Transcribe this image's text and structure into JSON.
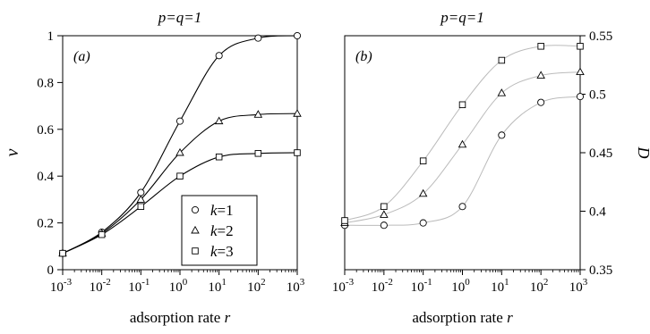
{
  "chart_data": [
    {
      "type": "line",
      "title": "p=q=1",
      "panel_label": "(a)",
      "xlabel": "adsorption rate r",
      "ylabel": "ν",
      "xscale": "log",
      "xlim": [
        0.001,
        1000
      ],
      "ylim": [
        0,
        1
      ],
      "x_ticks": [
        {
          "base": "10",
          "exp": "-3"
        },
        {
          "base": "10",
          "exp": "-2"
        },
        {
          "base": "10",
          "exp": "-1"
        },
        {
          "base": "10",
          "exp": "0"
        },
        {
          "base": "10",
          "exp": "1"
        },
        {
          "base": "10",
          "exp": "2"
        },
        {
          "base": "10",
          "exp": "3"
        }
      ],
      "y_ticks": [
        "0",
        "0.2",
        "0.4",
        "0.6",
        "0.8",
        "1"
      ],
      "y_axis_side": "left",
      "grid": false,
      "legend_position": "bottom-right",
      "x": [
        0.001,
        0.01,
        0.1,
        1,
        10,
        100,
        1000
      ],
      "series": [
        {
          "name": "k=1",
          "k": "1",
          "marker": "circle",
          "values": [
            0.07,
            0.16,
            0.33,
            0.635,
            0.915,
            0.99,
            1.0
          ]
        },
        {
          "name": "k=2",
          "k": "2",
          "marker": "triangle",
          "values": [
            0.07,
            0.155,
            0.3,
            0.5,
            0.635,
            0.663,
            0.667
          ]
        },
        {
          "name": "k=3",
          "k": "3",
          "marker": "square",
          "values": [
            0.07,
            0.15,
            0.27,
            0.4,
            0.482,
            0.497,
            0.5
          ]
        }
      ],
      "line_color": "#000000"
    },
    {
      "type": "line",
      "title": "p=q=1",
      "panel_label": "(b)",
      "xlabel": "adsorption rate r",
      "ylabel": "D",
      "xscale": "log",
      "xlim": [
        0.001,
        1000
      ],
      "ylim": [
        0.35,
        0.55
      ],
      "x_ticks": [
        {
          "base": "10",
          "exp": "-3"
        },
        {
          "base": "10",
          "exp": "-2"
        },
        {
          "base": "10",
          "exp": "-1"
        },
        {
          "base": "10",
          "exp": "0"
        },
        {
          "base": "10",
          "exp": "1"
        },
        {
          "base": "10",
          "exp": "2"
        },
        {
          "base": "10",
          "exp": "3"
        }
      ],
      "y_ticks": [
        "0.35",
        "0.4",
        "0.45",
        "0.5",
        "0.55"
      ],
      "y_axis_side": "right",
      "grid": false,
      "x": [
        0.001,
        0.01,
        0.1,
        1,
        10,
        100,
        1000
      ],
      "series": [
        {
          "marker": "circle",
          "values": [
            0.388,
            0.388,
            0.39,
            0.404,
            0.465,
            0.493,
            0.498
          ]
        },
        {
          "marker": "triangle",
          "values": [
            0.39,
            0.397,
            0.415,
            0.457,
            0.501,
            0.516,
            0.519
          ]
        },
        {
          "marker": "square",
          "values": [
            0.392,
            0.404,
            0.443,
            0.491,
            0.529,
            0.541,
            0.541
          ]
        }
      ],
      "line_color": "#bbbbbb"
    }
  ]
}
